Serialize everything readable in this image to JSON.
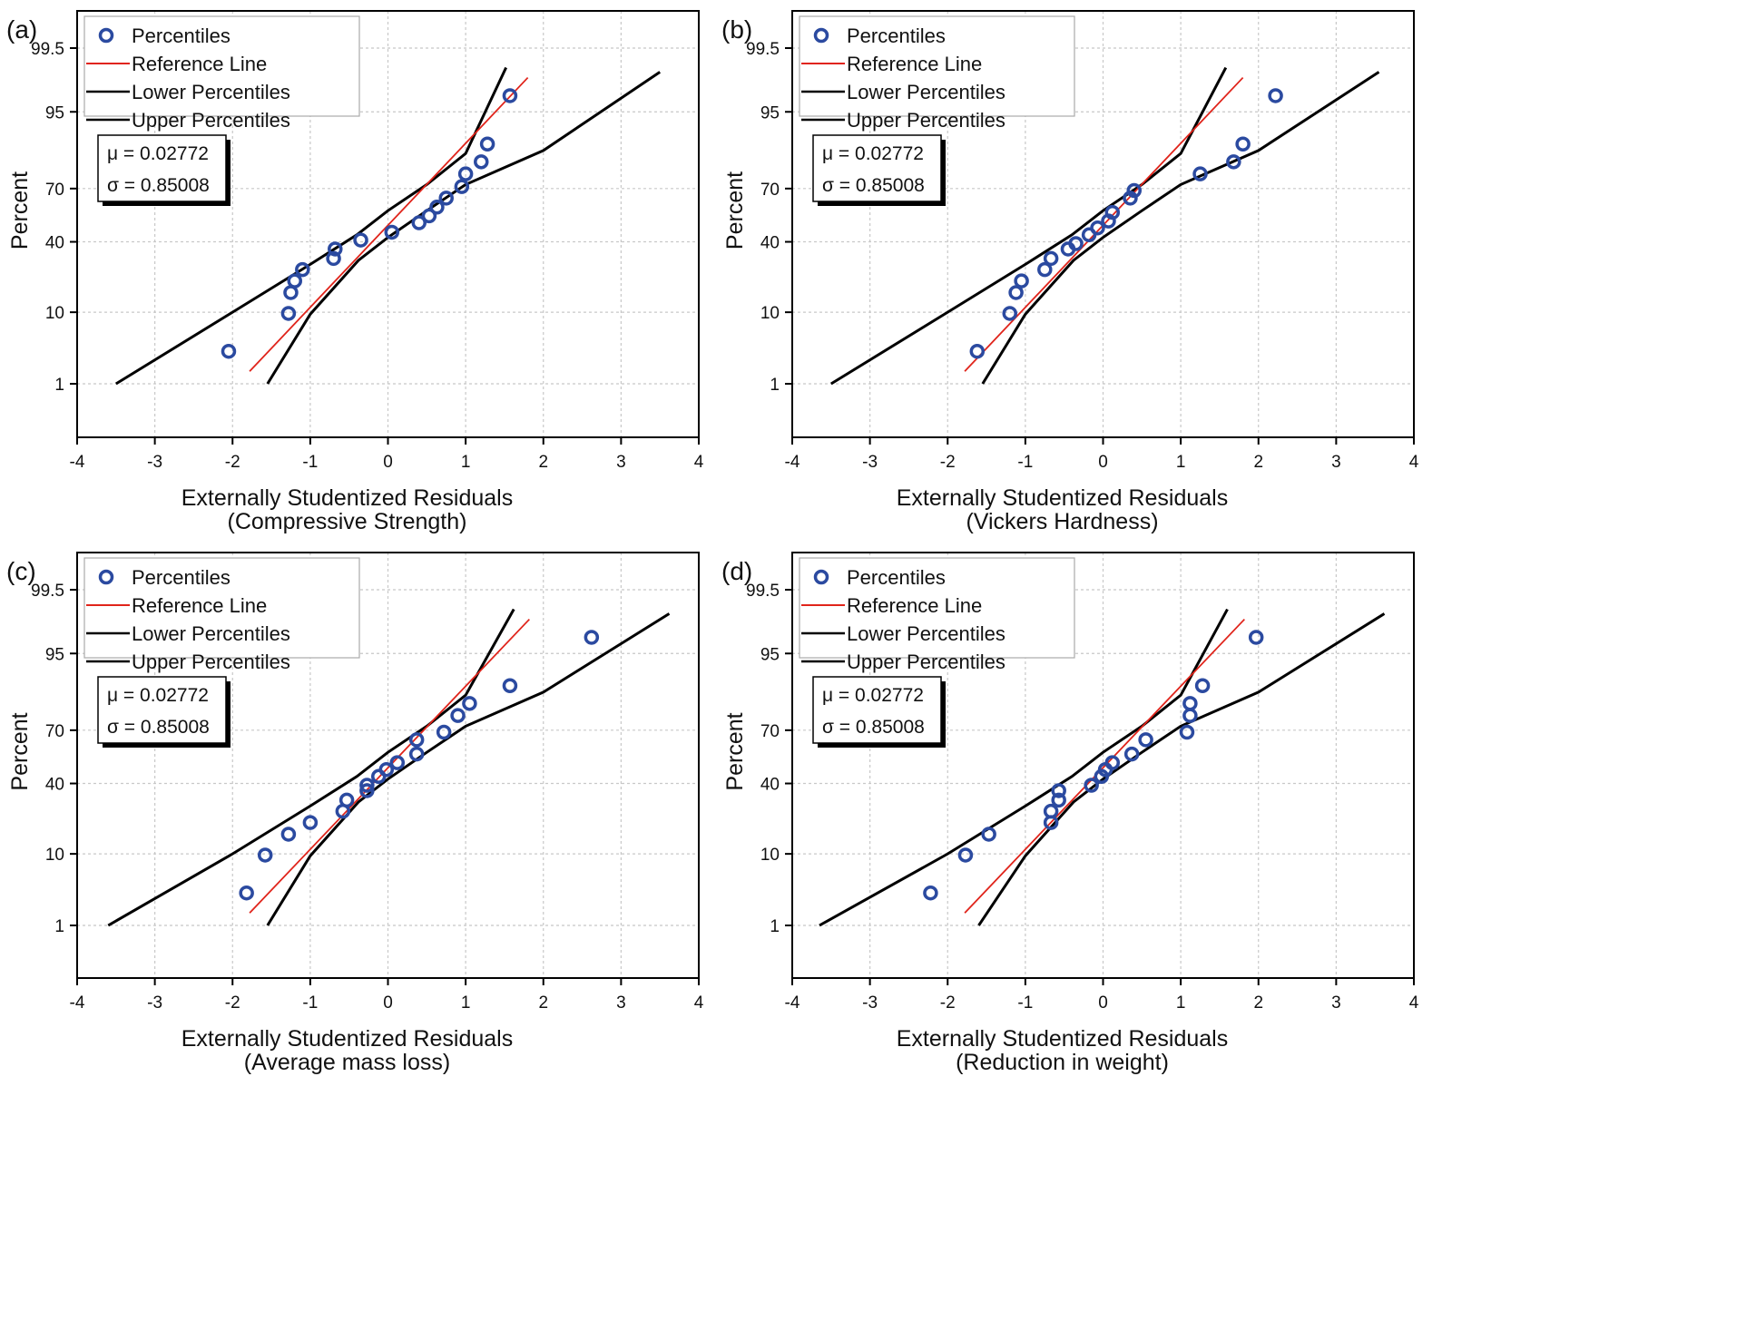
{
  "chart_data": [
    {
      "type": "scatter",
      "panel_label": "(a)",
      "xlabel": [
        "Externally Studentized Residuals",
        "(Compressive Strength)"
      ],
      "ylabel": "Percent",
      "xlim": [
        -4,
        4
      ],
      "x_ticks": [
        "-4",
        "-3",
        "-2",
        "-1",
        "0",
        "1",
        "2",
        "3",
        "4"
      ],
      "y_ticks": [
        {
          "value": 1,
          "label": "1"
        },
        {
          "value": 10,
          "label": "10"
        },
        {
          "value": 40,
          "label": "40"
        },
        {
          "value": 70,
          "label": "70"
        },
        {
          "value": 95,
          "label": "95"
        },
        {
          "value": 99.5,
          "label": "99.5"
        }
      ],
      "legend": [
        "Percentiles",
        "Reference Line",
        "Lower Percentiles",
        "Upper Percentiles"
      ],
      "stats": [
        "μ = 0.02772",
        "σ = 0.85008"
      ],
      "points": [
        [
          -2.05,
          3.2
        ],
        [
          -1.28,
          9.7
        ],
        [
          -1.25,
          16
        ],
        [
          -1.2,
          20.5
        ],
        [
          -1.1,
          25.5
        ],
        [
          -0.7,
          31
        ],
        [
          -0.68,
          36
        ],
        [
          -0.35,
          41
        ],
        [
          0.05,
          45.5
        ],
        [
          0.4,
          51
        ],
        [
          0.53,
          55
        ],
        [
          0.63,
          60
        ],
        [
          0.75,
          65
        ],
        [
          0.95,
          71
        ],
        [
          1.0,
          77
        ],
        [
          1.2,
          82
        ],
        [
          1.28,
          88
        ],
        [
          1.57,
          97
        ]
      ],
      "reference_line": [
        [
          -1.78,
          1.6
        ],
        [
          1.8,
          98.4
        ]
      ],
      "lower_percentiles": [
        [
          -1.55,
          1.0
        ],
        [
          -1.0,
          9.5
        ],
        [
          -0.38,
          30
        ],
        [
          0.0,
          42.5
        ],
        [
          0.5,
          58
        ],
        [
          1.0,
          72
        ],
        [
          2.0,
          86
        ],
        [
          3.5,
          98.7
        ]
      ],
      "upper_percentiles": [
        [
          -3.5,
          1.0
        ],
        [
          -2.0,
          10
        ],
        [
          -1.0,
          28
        ],
        [
          -0.4,
          44
        ],
        [
          0.0,
          58
        ],
        [
          0.5,
          72
        ],
        [
          1.0,
          85
        ],
        [
          1.52,
          98.9
        ]
      ]
    },
    {
      "type": "scatter",
      "panel_label": "(b)",
      "xlabel": [
        "Externally Studentized Residuals",
        "(Vickers Hardness)"
      ],
      "ylabel": "Percent",
      "xlim": [
        -4,
        4
      ],
      "x_ticks": [
        "-4",
        "-3",
        "-2",
        "-1",
        "0",
        "1",
        "2",
        "3",
        "4"
      ],
      "y_ticks": [
        {
          "value": 1,
          "label": "1"
        },
        {
          "value": 10,
          "label": "10"
        },
        {
          "value": 40,
          "label": "40"
        },
        {
          "value": 70,
          "label": "70"
        },
        {
          "value": 95,
          "label": "95"
        },
        {
          "value": 99.5,
          "label": "99.5"
        }
      ],
      "legend": [
        "Percentiles",
        "Reference Line",
        "Lower Percentiles",
        "Upper Percentiles"
      ],
      "stats": [
        "μ = 0.02772",
        "σ = 0.85008"
      ],
      "points": [
        [
          -1.62,
          3.2
        ],
        [
          -1.2,
          9.7
        ],
        [
          -1.12,
          16
        ],
        [
          -1.05,
          20.5
        ],
        [
          -0.75,
          25.5
        ],
        [
          -0.67,
          31
        ],
        [
          -0.45,
          36
        ],
        [
          -0.35,
          39
        ],
        [
          -0.18,
          44
        ],
        [
          -0.07,
          48
        ],
        [
          0.07,
          52
        ],
        [
          0.12,
          57
        ],
        [
          0.35,
          65
        ],
        [
          0.4,
          69
        ],
        [
          1.25,
          77
        ],
        [
          1.68,
          82
        ],
        [
          1.8,
          88
        ],
        [
          2.22,
          97
        ]
      ],
      "reference_line": [
        [
          -1.78,
          1.6
        ],
        [
          1.8,
          98.4
        ]
      ],
      "lower_percentiles": [
        [
          -1.55,
          1.0
        ],
        [
          -1.0,
          9.5
        ],
        [
          -0.38,
          30
        ],
        [
          0.0,
          42.5
        ],
        [
          0.5,
          58
        ],
        [
          1.0,
          72
        ],
        [
          2.0,
          86
        ],
        [
          3.55,
          98.7
        ]
      ],
      "upper_percentiles": [
        [
          -3.5,
          1.0
        ],
        [
          -2.0,
          10
        ],
        [
          -1.0,
          28
        ],
        [
          -0.4,
          44
        ],
        [
          0.0,
          58
        ],
        [
          0.5,
          72
        ],
        [
          1.0,
          85
        ],
        [
          1.58,
          98.9
        ]
      ]
    },
    {
      "type": "scatter",
      "panel_label": "(c)",
      "xlabel": [
        "Externally Studentized Residuals",
        "(Average mass loss)"
      ],
      "ylabel": "Percent",
      "xlim": [
        -4,
        4
      ],
      "x_ticks": [
        "-4",
        "-3",
        "-2",
        "-1",
        "0",
        "1",
        "2",
        "3",
        "4"
      ],
      "y_ticks": [
        {
          "value": 1,
          "label": "1"
        },
        {
          "value": 10,
          "label": "10"
        },
        {
          "value": 40,
          "label": "40"
        },
        {
          "value": 70,
          "label": "70"
        },
        {
          "value": 95,
          "label": "95"
        },
        {
          "value": 99.5,
          "label": "99.5"
        }
      ],
      "legend": [
        "Percentiles",
        "Reference Line",
        "Lower Percentiles",
        "Upper Percentiles"
      ],
      "stats": [
        "μ = 0.02772",
        "σ = 0.85008"
      ],
      "points": [
        [
          -1.82,
          3.2
        ],
        [
          -1.58,
          9.7
        ],
        [
          -1.28,
          16
        ],
        [
          -1.0,
          20.5
        ],
        [
          -0.58,
          25.5
        ],
        [
          -0.53,
          31
        ],
        [
          -0.27,
          36
        ],
        [
          -0.27,
          39
        ],
        [
          -0.12,
          44
        ],
        [
          -0.02,
          48
        ],
        [
          0.12,
          52
        ],
        [
          0.37,
          57
        ],
        [
          0.37,
          65
        ],
        [
          0.72,
          69
        ],
        [
          0.9,
          77
        ],
        [
          1.05,
          82
        ],
        [
          1.57,
          88
        ],
        [
          2.62,
          97
        ]
      ],
      "reference_line": [
        [
          -1.78,
          1.6
        ],
        [
          1.82,
          98.4
        ]
      ],
      "lower_percentiles": [
        [
          -1.55,
          1.0
        ],
        [
          -1.0,
          9.5
        ],
        [
          -0.38,
          30
        ],
        [
          0.0,
          42.5
        ],
        [
          0.5,
          58
        ],
        [
          1.0,
          72
        ],
        [
          2.0,
          86
        ],
        [
          3.62,
          98.7
        ]
      ],
      "upper_percentiles": [
        [
          -3.6,
          1.0
        ],
        [
          -2.0,
          10
        ],
        [
          -1.0,
          28
        ],
        [
          -0.4,
          44
        ],
        [
          0.0,
          58
        ],
        [
          0.5,
          72
        ],
        [
          1.0,
          85
        ],
        [
          1.62,
          98.9
        ]
      ]
    },
    {
      "type": "scatter",
      "panel_label": "(d)",
      "xlabel": [
        "Externally Studentized Residuals",
        "(Reduction in weight)"
      ],
      "ylabel": "Percent",
      "xlim": [
        -4,
        4
      ],
      "x_ticks": [
        "-4",
        "-3",
        "-2",
        "-1",
        "0",
        "1",
        "2",
        "3",
        "4"
      ],
      "y_ticks": [
        {
          "value": 1,
          "label": "1"
        },
        {
          "value": 10,
          "label": "10"
        },
        {
          "value": 40,
          "label": "40"
        },
        {
          "value": 70,
          "label": "70"
        },
        {
          "value": 95,
          "label": "95"
        },
        {
          "value": 99.5,
          "label": "99.5"
        }
      ],
      "legend": [
        "Percentiles",
        "Reference Line",
        "Lower Percentiles",
        "Upper Percentiles"
      ],
      "stats": [
        "μ = 0.02772",
        "σ = 0.85008"
      ],
      "points": [
        [
          -2.22,
          3.2
        ],
        [
          -1.77,
          9.7
        ],
        [
          -1.47,
          16
        ],
        [
          -0.67,
          20.5
        ],
        [
          -0.67,
          25.5
        ],
        [
          -0.57,
          31
        ],
        [
          -0.57,
          36
        ],
        [
          -0.15,
          39
        ],
        [
          -0.02,
          44
        ],
        [
          0.03,
          48
        ],
        [
          0.12,
          52
        ],
        [
          0.37,
          57
        ],
        [
          0.55,
          65
        ],
        [
          1.08,
          69
        ],
        [
          1.12,
          77
        ],
        [
          1.12,
          82
        ],
        [
          1.28,
          88
        ],
        [
          1.97,
          97
        ]
      ],
      "reference_line": [
        [
          -1.78,
          1.6
        ],
        [
          1.82,
          98.4
        ]
      ],
      "lower_percentiles": [
        [
          -1.6,
          1.0
        ],
        [
          -1.0,
          9.5
        ],
        [
          -0.38,
          30
        ],
        [
          0.0,
          42.5
        ],
        [
          0.5,
          58
        ],
        [
          1.0,
          72
        ],
        [
          2.0,
          86
        ],
        [
          3.62,
          98.7
        ]
      ],
      "upper_percentiles": [
        [
          -3.65,
          1.0
        ],
        [
          -2.0,
          10
        ],
        [
          -1.0,
          28
        ],
        [
          -0.4,
          44
        ],
        [
          0.0,
          58
        ],
        [
          0.5,
          72
        ],
        [
          1.0,
          85
        ],
        [
          1.6,
          98.9
        ]
      ]
    }
  ],
  "colors": {
    "marker": "#2b4aa0",
    "reference_line": "#e0241b",
    "percentile_lines": "#000000",
    "grid": "#c8c8c8"
  }
}
